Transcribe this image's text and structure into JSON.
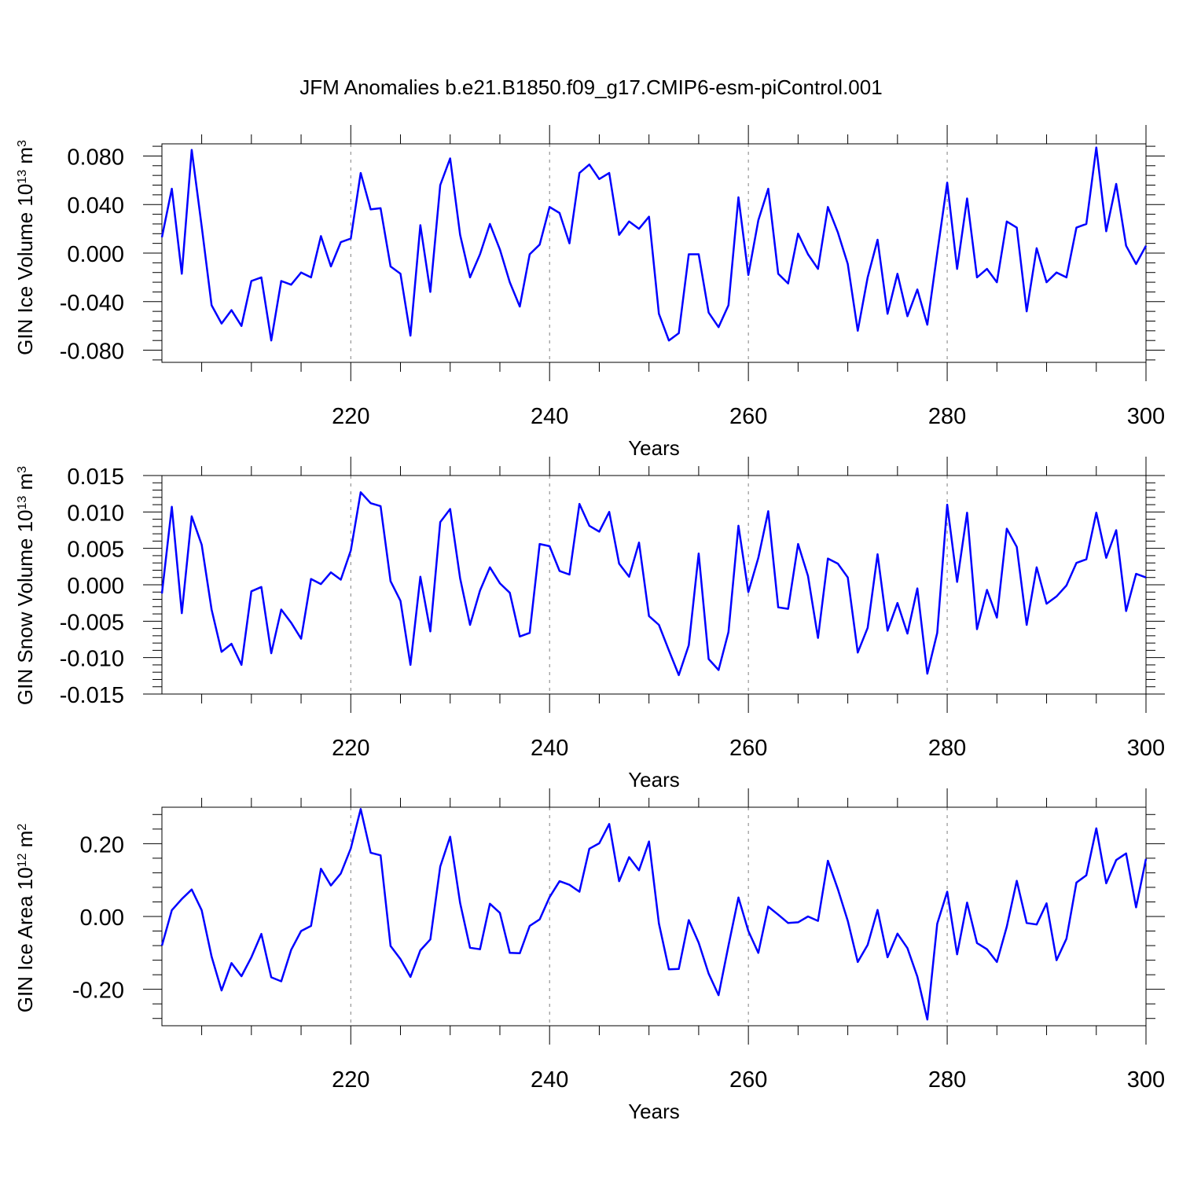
{
  "title": "JFM Anomalies b.e21.B1850.f09_g17.CMIP6-esm-piControl.001",
  "colors": {
    "line": "#0000ff",
    "grid": "#808080",
    "axes": "#000000"
  },
  "chart_data": [
    {
      "type": "line",
      "ylabel": "GIN Ice Volume 10",
      "ylabel_exp": "13",
      "ylabel_unit": " m",
      "ylabel_unit_exp": "3",
      "xlabel": "Years",
      "xlim": [
        201,
        300
      ],
      "ylim": [
        -0.09,
        0.09
      ],
      "yticks": [
        0.08,
        0.04,
        0.0,
        -0.04,
        -0.08
      ],
      "yticklabels": [
        "0.080",
        "0.040",
        "0.000",
        "-0.040",
        "-0.080"
      ],
      "xticks": [
        220,
        240,
        260,
        280,
        300
      ],
      "xticklabels": [
        "220",
        "240",
        "260",
        "280",
        "300"
      ],
      "grid": "dashed vertical at x ticks",
      "x": [
        201,
        202,
        203,
        204,
        205,
        206,
        207,
        208,
        209,
        210,
        211,
        212,
        213,
        214,
        215,
        216,
        217,
        218,
        219,
        220,
        221,
        222,
        223,
        224,
        225,
        226,
        227,
        228,
        229,
        230,
        231,
        232,
        233,
        234,
        235,
        236,
        237,
        238,
        239,
        240,
        241,
        242,
        243,
        244,
        245,
        246,
        247,
        248,
        249,
        250,
        251,
        252,
        253,
        254,
        255,
        256,
        257,
        258,
        259,
        260,
        261,
        262,
        263,
        264,
        265,
        266,
        267,
        268,
        269,
        270,
        271,
        272,
        273,
        274,
        275,
        276,
        277,
        278,
        279,
        280,
        281,
        282,
        283,
        284,
        285,
        286,
        287,
        288,
        289,
        290,
        291,
        292,
        293,
        294,
        295,
        296,
        297,
        298,
        299,
        300
      ],
      "values": [
        0.013,
        0.053,
        -0.017,
        0.085,
        0.022,
        -0.043,
        -0.058,
        -0.047,
        -0.06,
        -0.023,
        -0.02,
        -0.072,
        -0.023,
        -0.026,
        -0.016,
        -0.02,
        0.014,
        -0.011,
        0.009,
        0.012,
        0.066,
        0.036,
        0.037,
        -0.011,
        -0.017,
        -0.068,
        0.023,
        -0.032,
        0.056,
        0.078,
        0.015,
        -0.02,
        -0.001,
        0.024,
        0.003,
        -0.024,
        -0.044,
        -0.001,
        0.007,
        0.038,
        0.033,
        0.008,
        0.066,
        0.073,
        0.061,
        0.066,
        0.015,
        0.026,
        0.02,
        0.03,
        -0.05,
        -0.072,
        -0.066,
        -0.001,
        -0.001,
        -0.049,
        -0.061,
        -0.043,
        0.046,
        -0.018,
        0.027,
        0.053,
        -0.017,
        -0.025,
        0.016,
        -0.001,
        -0.013,
        0.038,
        0.017,
        -0.009,
        -0.064,
        -0.02,
        0.011,
        -0.05,
        -0.017,
        -0.052,
        -0.03,
        -0.059,
        0.0,
        0.058,
        -0.013,
        0.045,
        -0.02,
        -0.013,
        -0.024,
        0.026,
        0.021,
        -0.048,
        0.004,
        -0.024,
        -0.016,
        -0.02,
        0.021,
        0.024,
        0.087,
        0.018,
        0.057,
        0.006,
        -0.009,
        0.006
      ]
    },
    {
      "type": "line",
      "ylabel": "GIN Snow Volume 10",
      "ylabel_exp": "13",
      "ylabel_unit": " m",
      "ylabel_unit_exp": "3",
      "xlabel": "Years",
      "xlim": [
        201,
        300
      ],
      "ylim": [
        -0.015,
        0.015
      ],
      "yticks": [
        0.015,
        0.01,
        0.005,
        0.0,
        -0.005,
        -0.01,
        -0.015
      ],
      "yticklabels": [
        "0.015",
        "0.010",
        "0.005",
        "0.000",
        "-0.005",
        "-0.010",
        "-0.015"
      ],
      "xticks": [
        220,
        240,
        260,
        280,
        300
      ],
      "xticklabels": [
        "220",
        "240",
        "260",
        "280",
        "300"
      ],
      "grid": "dashed vertical at x ticks",
      "x": [
        201,
        202,
        203,
        204,
        205,
        206,
        207,
        208,
        209,
        210,
        211,
        212,
        213,
        214,
        215,
        216,
        217,
        218,
        219,
        220,
        221,
        222,
        223,
        224,
        225,
        226,
        227,
        228,
        229,
        230,
        231,
        232,
        233,
        234,
        235,
        236,
        237,
        238,
        239,
        240,
        241,
        242,
        243,
        244,
        245,
        246,
        247,
        248,
        249,
        250,
        251,
        252,
        253,
        254,
        255,
        256,
        257,
        258,
        259,
        260,
        261,
        262,
        263,
        264,
        265,
        266,
        267,
        268,
        269,
        270,
        271,
        272,
        273,
        274,
        275,
        276,
        277,
        278,
        279,
        280,
        281,
        282,
        283,
        284,
        285,
        286,
        287,
        288,
        289,
        290,
        291,
        292,
        293,
        294,
        295,
        296,
        297,
        298,
        299,
        300
      ],
      "values": [
        -0.0012,
        0.0107,
        -0.0039,
        0.0094,
        0.0055,
        -0.0034,
        -0.0092,
        -0.0081,
        -0.011,
        -0.0009,
        -0.0003,
        -0.0094,
        -0.0034,
        -0.0052,
        -0.0074,
        0.0008,
        0.0001,
        0.0017,
        0.0007,
        0.0047,
        0.0127,
        0.0112,
        0.0108,
        0.0005,
        -0.0022,
        -0.011,
        0.0011,
        -0.0064,
        0.0086,
        0.0104,
        0.0009,
        -0.0055,
        -0.0008,
        0.0024,
        0.0002,
        -0.0011,
        -0.0071,
        -0.0066,
        0.0056,
        0.0053,
        0.0019,
        0.0014,
        0.0111,
        0.0081,
        0.0073,
        0.01,
        0.0029,
        0.0011,
        0.0058,
        -0.0043,
        -0.0055,
        -0.009,
        -0.0124,
        -0.0083,
        0.0043,
        -0.0102,
        -0.0117,
        -0.0065,
        0.0081,
        -0.001,
        0.0037,
        0.0101,
        -0.0031,
        -0.0033,
        0.0056,
        0.0012,
        -0.0073,
        0.0036,
        0.0029,
        0.001,
        -0.0093,
        -0.0059,
        0.0042,
        -0.0063,
        -0.0025,
        -0.0067,
        -0.0005,
        -0.0122,
        -0.0066,
        0.011,
        0.0004,
        0.0099,
        -0.0061,
        -0.0007,
        -0.0045,
        0.0077,
        0.0052,
        -0.0055,
        0.0024,
        -0.0026,
        -0.0016,
        -0.0001,
        0.003,
        0.0035,
        0.0099,
        0.0037,
        0.0075,
        -0.0036,
        0.0015,
        0.001
      ]
    },
    {
      "type": "line",
      "ylabel": "GIN Ice Area 10",
      "ylabel_exp": "12",
      "ylabel_unit": " m",
      "ylabel_unit_exp": "2",
      "xlabel": "Years",
      "xlim": [
        201,
        300
      ],
      "ylim": [
        -0.3,
        0.3
      ],
      "yticks": [
        0.2,
        0.0,
        -0.2
      ],
      "yticklabels": [
        "0.20",
        "0.00",
        "-0.20"
      ],
      "xticks": [
        220,
        240,
        260,
        280,
        300
      ],
      "xticklabels": [
        "220",
        "240",
        "260",
        "280",
        "300"
      ],
      "grid": "dashed vertical at x ticks",
      "x": [
        201,
        202,
        203,
        204,
        205,
        206,
        207,
        208,
        209,
        210,
        211,
        212,
        213,
        214,
        215,
        216,
        217,
        218,
        219,
        220,
        221,
        222,
        223,
        224,
        225,
        226,
        227,
        228,
        229,
        230,
        231,
        232,
        233,
        234,
        235,
        236,
        237,
        238,
        239,
        240,
        241,
        242,
        243,
        244,
        245,
        246,
        247,
        248,
        249,
        250,
        251,
        252,
        253,
        254,
        255,
        256,
        257,
        258,
        259,
        260,
        261,
        262,
        263,
        264,
        265,
        266,
        267,
        268,
        269,
        270,
        271,
        272,
        273,
        274,
        275,
        276,
        277,
        278,
        279,
        280,
        281,
        282,
        283,
        284,
        285,
        286,
        287,
        288,
        289,
        290,
        291,
        292,
        293,
        294,
        295,
        296,
        297,
        298,
        299,
        300
      ],
      "values": [
        -0.08,
        0.017,
        0.048,
        0.074,
        0.017,
        -0.11,
        -0.203,
        -0.128,
        -0.164,
        -0.112,
        -0.048,
        -0.167,
        -0.178,
        -0.092,
        -0.04,
        -0.026,
        0.131,
        0.085,
        0.118,
        0.187,
        0.295,
        0.175,
        0.168,
        -0.081,
        -0.117,
        -0.166,
        -0.093,
        -0.063,
        0.137,
        0.219,
        0.037,
        -0.086,
        -0.09,
        0.035,
        0.01,
        -0.1,
        -0.101,
        -0.026,
        -0.008,
        0.053,
        0.097,
        0.087,
        0.068,
        0.186,
        0.201,
        0.254,
        0.097,
        0.163,
        0.127,
        0.206,
        -0.019,
        -0.145,
        -0.144,
        -0.01,
        -0.072,
        -0.157,
        -0.216,
        -0.08,
        0.052,
        -0.04,
        -0.1,
        0.027,
        0.005,
        -0.018,
        -0.016,
        0.0,
        -0.012,
        0.153,
        0.075,
        -0.012,
        -0.125,
        -0.078,
        0.018,
        -0.112,
        -0.047,
        -0.087,
        -0.165,
        -0.283,
        -0.02,
        0.068,
        -0.104,
        0.038,
        -0.073,
        -0.09,
        -0.125,
        -0.028,
        0.098,
        -0.018,
        -0.022,
        0.036,
        -0.12,
        -0.061,
        0.093,
        0.113,
        0.242,
        0.091,
        0.155,
        0.173,
        0.025,
        0.158
      ]
    }
  ]
}
